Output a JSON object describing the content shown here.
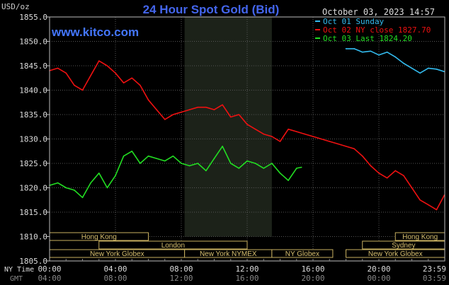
{
  "header": {
    "title": "24 Hour Spot Gold (Bid)",
    "y_unit": "USD/oz",
    "timestamp": "October 03, 2023 14:57",
    "watermark": "www.kitco.com"
  },
  "legend": [
    {
      "label": "Oct 01 Sunday",
      "color": "#33bbee"
    },
    {
      "label": "Oct 02 NY close 1827.70",
      "color": "#ee1111"
    },
    {
      "label": "Oct 03 Last 1824.20",
      "color": "#22dd22"
    }
  ],
  "x_axis": {
    "row1_label": "NY Time",
    "row2_label": "GMT",
    "ny_ticks": [
      "00:00",
      "04:00",
      "08:00",
      "12:00",
      "16:00",
      "20:00",
      "23:59"
    ],
    "gmt_ticks": [
      "04:00",
      "08:00",
      "12:00",
      "16:00",
      "20:00",
      "00:00",
      "03:59"
    ]
  },
  "sessions": [
    {
      "label": "Hong Kong",
      "row": 0,
      "start": 0,
      "end": 6.0
    },
    {
      "label": "Hong Kong",
      "row": 0,
      "start": 21.0,
      "end": 24
    },
    {
      "label": "London",
      "row": 1,
      "start": 3.0,
      "end": 12.0
    },
    {
      "label": "Sydney",
      "row": 1,
      "start": 19.0,
      "end": 24
    },
    {
      "label": "New York Globex",
      "row": 2,
      "start": 0,
      "end": 8.2
    },
    {
      "label": "New York NYMEX",
      "row": 2,
      "start": 8.2,
      "end": 13.5
    },
    {
      "label": "NY Globex",
      "row": 2,
      "start": 13.5,
      "end": 17.2
    },
    {
      "label": "New York Globex",
      "row": 2,
      "start": 18.0,
      "end": 24
    }
  ],
  "chart_data": {
    "type": "line",
    "title": "24 Hour Spot Gold (Bid)",
    "ylabel": "USD/oz",
    "xlabel": "NY Time",
    "ylim": [
      1805,
      1855
    ],
    "xlim": [
      0,
      24
    ],
    "y_ticks": [
      "1855.0",
      "1850.0",
      "1845.0",
      "1840.0",
      "1835.0",
      "1830.0",
      "1825.0",
      "1820.0",
      "1815.0",
      "1810.0",
      "1805.0"
    ],
    "nymex_window": [
      8.2,
      13.5
    ],
    "grid": true,
    "legend_position": "top-right",
    "series": [
      {
        "name": "Oct 01 Sunday",
        "color": "#33bbee",
        "x": [
          18.0,
          18.5,
          19.0,
          19.5,
          20.0,
          20.5,
          21.0,
          21.5,
          22.0,
          22.5,
          23.0,
          23.5,
          23.98
        ],
        "y": [
          1848.5,
          1848.5,
          1847.8,
          1848.0,
          1847.2,
          1847.8,
          1846.8,
          1845.5,
          1844.5,
          1843.5,
          1844.5,
          1844.3,
          1843.8
        ]
      },
      {
        "name": "Oct 02 NY close 1827.70",
        "color": "#ee1111",
        "x": [
          0,
          0.5,
          1.0,
          1.5,
          2.0,
          2.5,
          3.0,
          3.5,
          4.0,
          4.5,
          5.0,
          5.5,
          6.0,
          6.5,
          7.0,
          7.5,
          8.0,
          8.5,
          9.0,
          9.5,
          10.0,
          10.5,
          11.0,
          11.5,
          12.0,
          12.5,
          13.0,
          13.5,
          14.0,
          14.5,
          15.0,
          15.5,
          16.0,
          16.5,
          17.0,
          17.5,
          18.0,
          18.5,
          19.0,
          19.5,
          20.0,
          20.5,
          21.0,
          21.5,
          22.0,
          22.5,
          23.0,
          23.5,
          23.98
        ],
        "y": [
          1844.0,
          1844.5,
          1843.5,
          1841.0,
          1840.0,
          1843.0,
          1846.0,
          1845.0,
          1843.5,
          1841.5,
          1842.5,
          1841.0,
          1838.0,
          1836.0,
          1834.0,
          1835.0,
          1835.5,
          1836.0,
          1836.5,
          1836.5,
          1836.0,
          1837.0,
          1834.5,
          1835.0,
          1833.0,
          1832.0,
          1831.0,
          1830.5,
          1829.5,
          1832.0,
          1831.5,
          1831.0,
          1830.5,
          1830.0,
          1829.5,
          1829.0,
          1828.5,
          1828.0,
          1826.5,
          1824.5,
          1823.0,
          1822.0,
          1823.5,
          1822.5,
          1820.0,
          1817.5,
          1816.5,
          1815.5,
          1818.5
        ]
      },
      {
        "name": "Oct 03 Last 1824.20",
        "color": "#22dd22",
        "x": [
          0,
          0.5,
          1.0,
          1.5,
          2.0,
          2.5,
          3.0,
          3.5,
          4.0,
          4.5,
          5.0,
          5.5,
          6.0,
          6.5,
          7.0,
          7.5,
          8.0,
          8.5,
          9.0,
          9.5,
          10.0,
          10.5,
          11.0,
          11.5,
          12.0,
          12.5,
          13.0,
          13.5,
          14.0,
          14.5,
          15.0,
          15.3
        ],
        "y": [
          1820.5,
          1821.0,
          1820.0,
          1819.5,
          1818.0,
          1821.0,
          1823.0,
          1820.0,
          1822.5,
          1826.5,
          1827.5,
          1825.0,
          1826.5,
          1826.0,
          1825.5,
          1826.5,
          1825.0,
          1824.5,
          1825.0,
          1823.5,
          1826.0,
          1828.5,
          1825.0,
          1824.0,
          1825.5,
          1825.0,
          1824.0,
          1825.0,
          1823.0,
          1821.5,
          1824.0,
          1824.2
        ]
      }
    ]
  }
}
